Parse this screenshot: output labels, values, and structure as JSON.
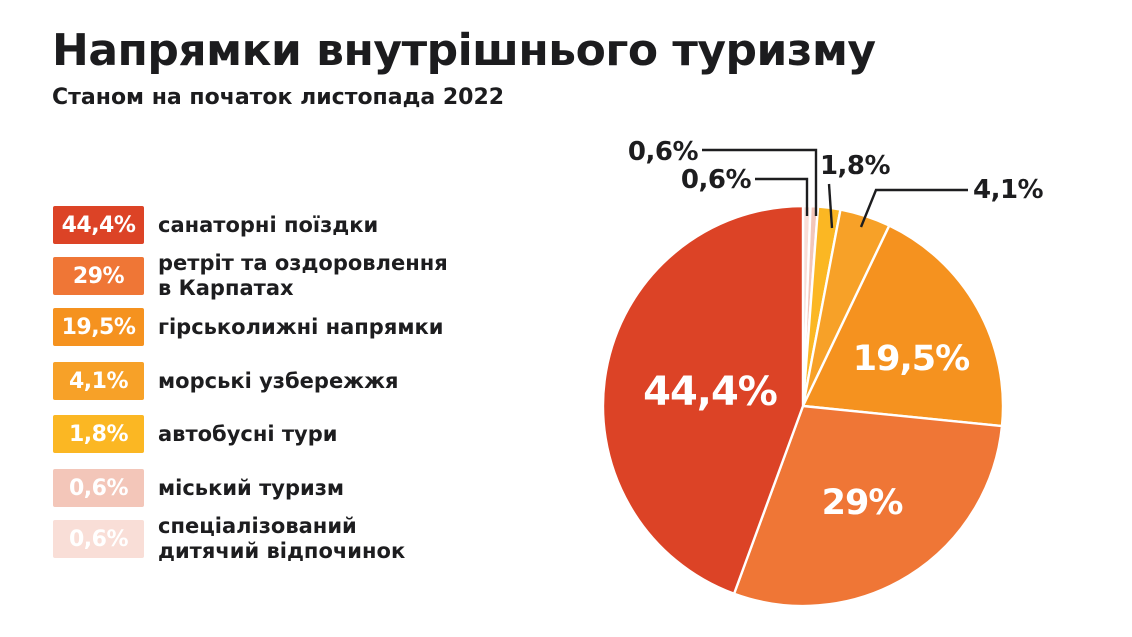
{
  "header": {
    "title": "Напрямки внутрішнього туризму",
    "subtitle": "Станом на початок листопада 2022"
  },
  "colors": {
    "background": "#ffffff",
    "text": "#1d1d1f",
    "leader_line": "#1d1d1f",
    "inner_label": "#ffffff"
  },
  "chart_data": {
    "type": "pie",
    "title": "Напрямки внутрішнього туризму",
    "subtitle": "Станом на початок листопада 2022",
    "unit": "%",
    "total": 100,
    "legend_position": "left",
    "rotation": "slices laid out counterclockwise from 12 o'clock in legend order (largest first)",
    "slices": [
      {
        "id": "sanatorni",
        "label": "санаторні поїздки",
        "value": 44.4,
        "display": "44,4%",
        "color": "#DC4326",
        "label_placement": "inside"
      },
      {
        "id": "retreat",
        "label": "ретріт та оздоровлення в Карпатах",
        "value": 29,
        "display": "29%",
        "color": "#EF7636",
        "label_placement": "inside"
      },
      {
        "id": "ski",
        "label": "гірськолижні напрямки",
        "value": 19.5,
        "display": "19,5%",
        "color": "#F5921F",
        "label_placement": "inside"
      },
      {
        "id": "sea",
        "label": "морські узбережжя",
        "value": 4.1,
        "display": "4,1%",
        "color": "#F7A128",
        "label_placement": "callout"
      },
      {
        "id": "bus",
        "label": "автобусні тури",
        "value": 1.8,
        "display": "1,8%",
        "color": "#FBB723",
        "label_placement": "callout"
      },
      {
        "id": "city",
        "label": "міський туризм",
        "value": 0.6,
        "display": "0,6%",
        "color": "#F3C6B9",
        "label_placement": "callout"
      },
      {
        "id": "kids",
        "label": "спеціалізований дитячий відпочинок",
        "value": 0.6,
        "display": "0,6%",
        "color": "#F9DED7",
        "label_placement": "callout"
      }
    ]
  },
  "legend": {
    "items": [
      {
        "id": "sanatorni",
        "badge": "44,4%",
        "color": "#DC4326",
        "lines": [
          "санаторні поїздки"
        ]
      },
      {
        "id": "retreat",
        "badge": "29%",
        "color": "#EF7636",
        "lines": [
          "ретріт та оздоровлення",
          "в Карпатах"
        ]
      },
      {
        "id": "ski",
        "badge": "19,5%",
        "color": "#F5921F",
        "lines": [
          "гірськолижні напрямки"
        ]
      },
      {
        "id": "sea",
        "badge": "4,1%",
        "color": "#F7A128",
        "lines": [
          "морські узбережжя"
        ]
      },
      {
        "id": "bus",
        "badge": "1,8%",
        "color": "#FBB723",
        "lines": [
          "автобусні тури"
        ]
      },
      {
        "id": "city",
        "badge": "0,6%",
        "color": "#F3C6B9",
        "lines": [
          "міський туризм"
        ]
      },
      {
        "id": "kids",
        "badge": "0,6%",
        "color": "#F9DED7",
        "lines": [
          "спеціалізований",
          "дитячий відпочинок"
        ]
      }
    ]
  }
}
